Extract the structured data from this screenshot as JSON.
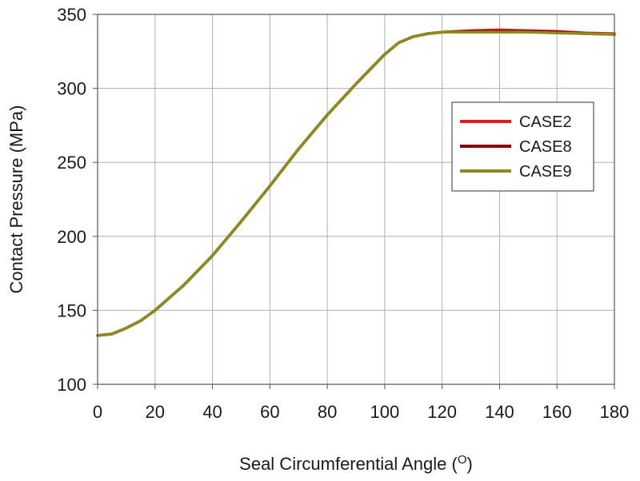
{
  "chart_data": {
    "type": "line",
    "xlabel": "Seal Circumferential Angle (",
    "xlabel_sup": "O",
    "xlabel_suffix": ")",
    "ylabel": "Contact Pressure (MPa)",
    "xlim": [
      0,
      180
    ],
    "ylim": [
      100,
      350
    ],
    "xticks": [
      0,
      20,
      40,
      60,
      80,
      100,
      120,
      140,
      160,
      180
    ],
    "yticks": [
      100,
      150,
      200,
      250,
      300,
      350
    ],
    "grid": true,
    "legend_position": "right",
    "x": [
      0,
      5,
      10,
      15,
      20,
      30,
      40,
      50,
      60,
      70,
      80,
      90,
      100,
      105,
      110,
      115,
      120,
      130,
      140,
      150,
      160,
      170,
      180
    ],
    "series": [
      {
        "name": "CASE2",
        "color": "#e41a1c",
        "values": [
          133,
          134,
          138,
          143,
          150,
          167,
          187,
          210,
          234,
          259,
          282,
          303,
          323,
          331,
          335,
          337,
          338,
          339,
          339.5,
          339,
          338.5,
          337.5,
          337
        ]
      },
      {
        "name": "CASE8",
        "color": "#8b0000",
        "values": [
          133,
          134,
          138,
          143,
          150,
          167,
          187,
          210,
          234,
          259,
          282,
          303,
          323,
          331,
          335,
          337,
          338,
          338.5,
          338.5,
          338.5,
          338,
          337,
          336.5
        ]
      },
      {
        "name": "CASE9",
        "color": "#8c8c1e",
        "values": [
          133,
          134,
          138,
          143,
          150,
          167,
          187,
          210,
          234,
          259,
          282,
          303,
          323,
          331,
          335,
          337,
          338,
          338,
          338,
          338,
          337.5,
          337,
          336.5
        ]
      }
    ]
  }
}
